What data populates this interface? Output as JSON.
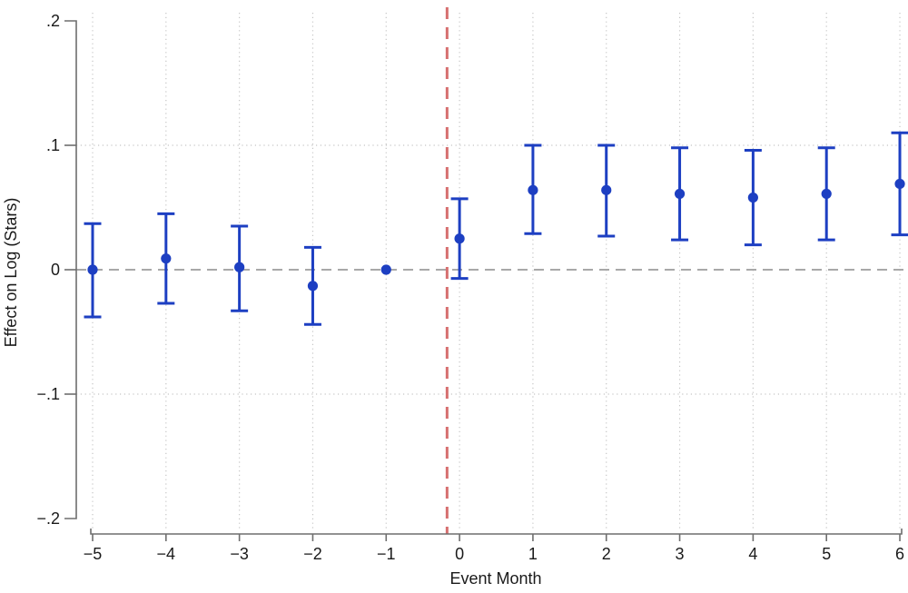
{
  "chart_data": {
    "type": "scatter",
    "subtype": "event-study-errorbar",
    "title": "",
    "xlabel": "Event Month",
    "ylabel": "Effect on Log (Stars)",
    "x": [
      -5,
      -4,
      -3,
      -2,
      -1,
      0,
      1,
      2,
      3,
      4,
      5,
      6
    ],
    "y": [
      0.0,
      0.009,
      0.002,
      -0.013,
      0.0,
      0.025,
      0.064,
      0.064,
      0.061,
      0.058,
      0.061,
      0.069
    ],
    "ci_low": [
      -0.038,
      -0.027,
      -0.033,
      -0.044,
      null,
      -0.007,
      0.029,
      0.027,
      0.024,
      0.02,
      0.024,
      0.028
    ],
    "ci_high": [
      0.037,
      0.045,
      0.035,
      0.018,
      null,
      0.057,
      0.1,
      0.1,
      0.098,
      0.096,
      0.098,
      0.11
    ],
    "reference_period_x": -1,
    "vline_x": -0.17,
    "zero_line_y": 0,
    "xlim": [
      -5.3,
      6.1
    ],
    "ylim": [
      -0.2,
      0.2
    ],
    "xticks": [
      {
        "label": "−5",
        "value": -5
      },
      {
        "label": "−4",
        "value": -4
      },
      {
        "label": "−3",
        "value": -3
      },
      {
        "label": "−2",
        "value": -2
      },
      {
        "label": "−1",
        "value": -1
      },
      {
        "label": "0",
        "value": 0
      },
      {
        "label": "1",
        "value": 1
      },
      {
        "label": "2",
        "value": 2
      },
      {
        "label": "3",
        "value": 3
      },
      {
        "label": "4",
        "value": 4
      },
      {
        "label": "5",
        "value": 5
      },
      {
        "label": "6",
        "value": 6
      }
    ],
    "yticks": [
      {
        "label": ".2",
        "value": 0.2
      },
      {
        "label": ".1",
        "value": 0.1
      },
      {
        "label": "0",
        "value": 0
      },
      {
        "label": "−.1",
        "value": -0.1
      },
      {
        "label": "−.2",
        "value": -0.2
      }
    ],
    "grid_y_values": [
      0.1,
      -0.1
    ],
    "grid": true,
    "legend": "none",
    "colors": {
      "point": "#1d3fc2",
      "error_bar": "#1d3fc2",
      "vline": "#d66f6f",
      "zero_line": "#a8a8a8",
      "grid": "#c5c5c5",
      "axis": "#6e6e6e",
      "text": "#1a1a1a",
      "background": "#ffffff"
    }
  }
}
